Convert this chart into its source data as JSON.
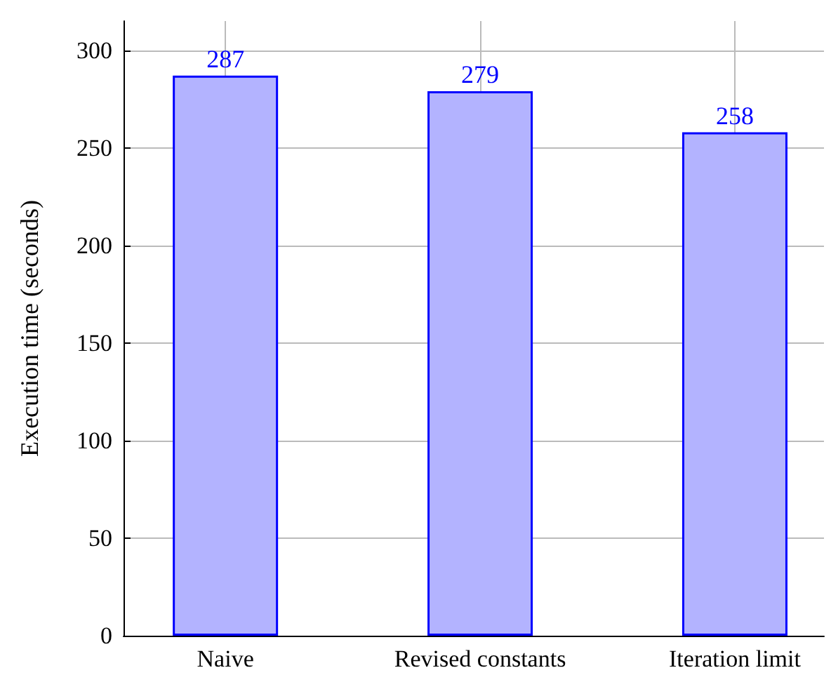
{
  "chart_data": {
    "type": "bar",
    "ylabel": "Execution time (seconds)",
    "categories": [
      "Naive",
      "Revised constants",
      "Iteration limit"
    ],
    "values": [
      287,
      279,
      258
    ],
    "color": "#b3b3ff",
    "ylim": [
      0,
      315
    ],
    "yticks": [
      0,
      50,
      100,
      150,
      200,
      250,
      300
    ],
    "grid": true,
    "data_labels": true
  }
}
